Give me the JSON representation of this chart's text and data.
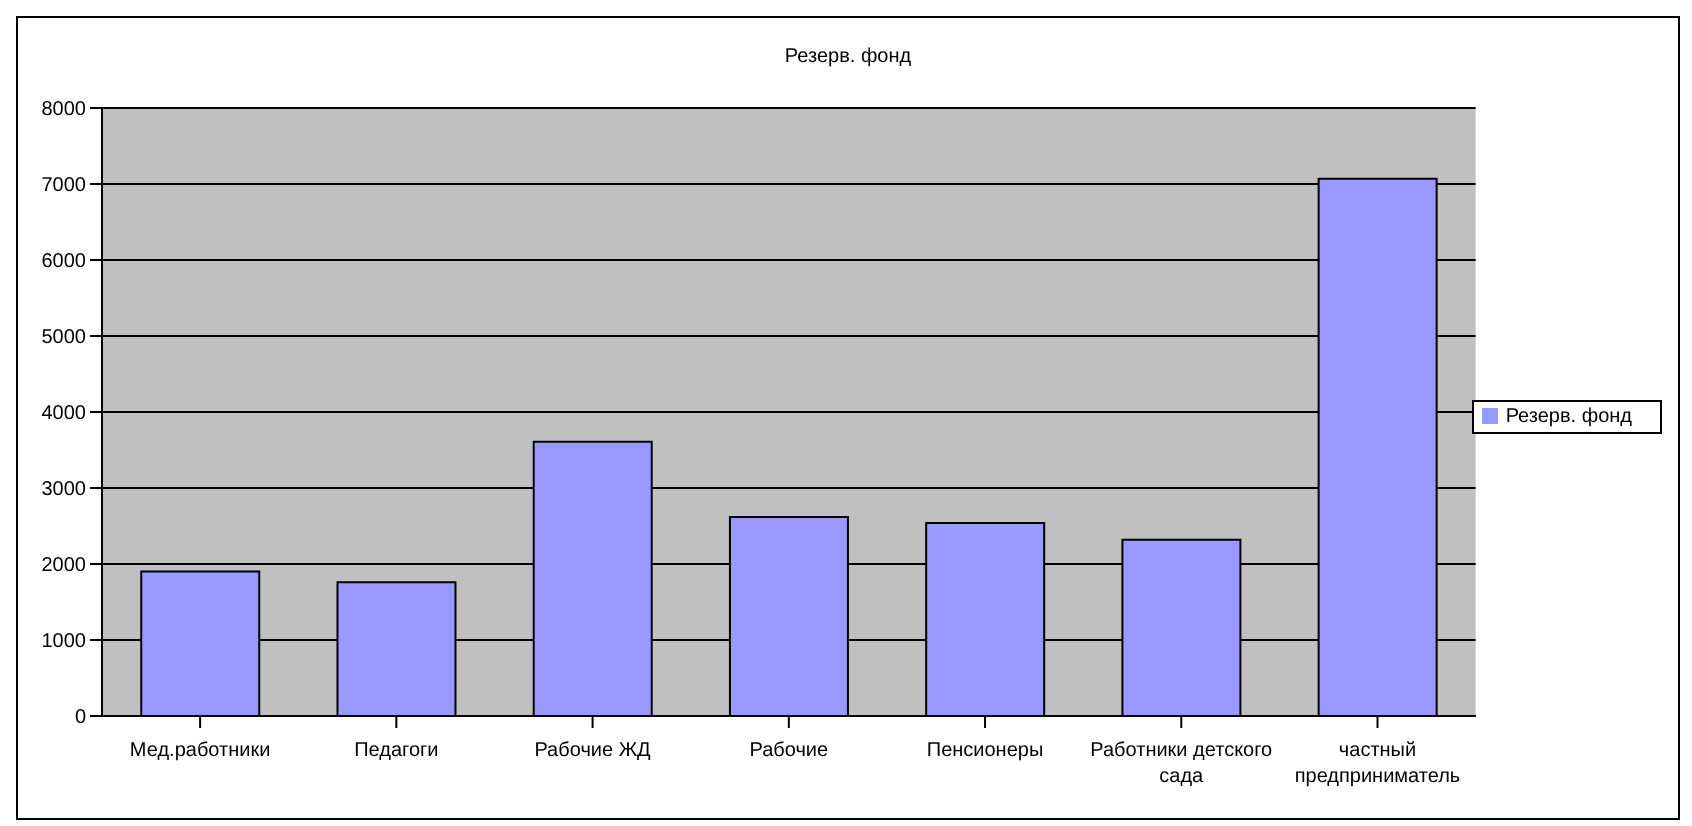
{
  "chart_data": {
    "type": "bar",
    "title": "Резерв. фонд",
    "categories": [
      "Мед.работники",
      "Педагоги",
      "Рабочие ЖД",
      "Рабочие",
      "Пенсионеры",
      "Работники детского сада",
      "частный предприниматель"
    ],
    "series": [
      {
        "name": "Резерв. фонд",
        "color": "#9999ff",
        "values": [
          1900,
          1760,
          3610,
          2620,
          2540,
          2320,
          7070
        ]
      }
    ],
    "ylim": [
      0,
      8000
    ],
    "yticks": [
      0,
      1000,
      2000,
      3000,
      4000,
      5000,
      6000,
      7000,
      8000
    ],
    "grid": "y",
    "legend": "right"
  }
}
